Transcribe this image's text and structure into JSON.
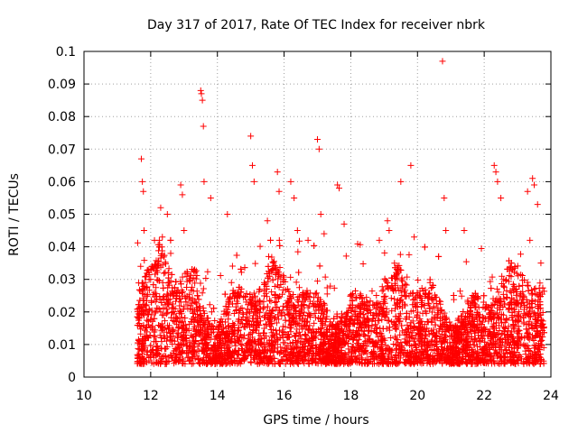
{
  "chart_data": {
    "type": "scatter",
    "title": "Day 317 of 2017, Rate Of TEC Index for receiver nbrk",
    "xlabel": "GPS time / hours",
    "ylabel": "ROTI / TECUs",
    "xlim": [
      10,
      24
    ],
    "ylim": [
      0,
      0.1
    ],
    "xticks": [
      10,
      12,
      14,
      16,
      18,
      20,
      22,
      24
    ],
    "xtick_labels": [
      "10",
      "12",
      "14",
      "16",
      "18",
      "20",
      "22",
      "24"
    ],
    "yticks": [
      0,
      0.01,
      0.02,
      0.03,
      0.04,
      0.05,
      0.06,
      0.07,
      0.08,
      0.09,
      0.1
    ],
    "ytick_labels": [
      "0",
      "0.01",
      "0.02",
      "0.03",
      "0.04",
      "0.05",
      "0.06",
      "0.07",
      "0.08",
      "0.09",
      "0.1"
    ],
    "grid": true,
    "marker": "+",
    "series": [
      {
        "name": "ROTI",
        "color": "#ff0000",
        "x": [
          11.7,
          11.72,
          11.75,
          11.78,
          11.8,
          12.3,
          12.35,
          12.5,
          12.6,
          12.9,
          12.95,
          13.0,
          13.5,
          13.52,
          13.55,
          13.58,
          13.6,
          13.8,
          14.3,
          15.0,
          15.05,
          15.1,
          15.5,
          15.8,
          15.85,
          16.2,
          16.3,
          16.4,
          17.0,
          17.05,
          17.1,
          17.2,
          17.6,
          17.65,
          17.8,
          19.1,
          19.15,
          19.5,
          19.8,
          19.9,
          20.75,
          20.8,
          20.85,
          21.4,
          22.3,
          22.35,
          22.4,
          22.5,
          23.3,
          23.45,
          23.5,
          23.6,
          23.7
        ],
        "y": [
          0.034,
          0.067,
          0.06,
          0.057,
          0.045,
          0.052,
          0.043,
          0.05,
          0.038,
          0.059,
          0.056,
          0.045,
          0.088,
          0.087,
          0.085,
          0.077,
          0.06,
          0.055,
          0.05,
          0.074,
          0.065,
          0.06,
          0.048,
          0.063,
          0.057,
          0.06,
          0.055,
          0.045,
          0.073,
          0.07,
          0.05,
          0.044,
          0.059,
          0.058,
          0.047,
          0.048,
          0.045,
          0.06,
          0.065,
          0.043,
          0.097,
          0.055,
          0.045,
          0.045,
          0.065,
          0.063,
          0.06,
          0.055,
          0.057,
          0.061,
          0.059,
          0.053,
          0.035
        ]
      }
    ],
    "dense_band": {
      "x_range": [
        11.6,
        23.8
      ],
      "y_range": [
        0.003,
        0.03
      ],
      "note": "dense cloud of points, mostly between 0.005 and 0.02"
    }
  }
}
